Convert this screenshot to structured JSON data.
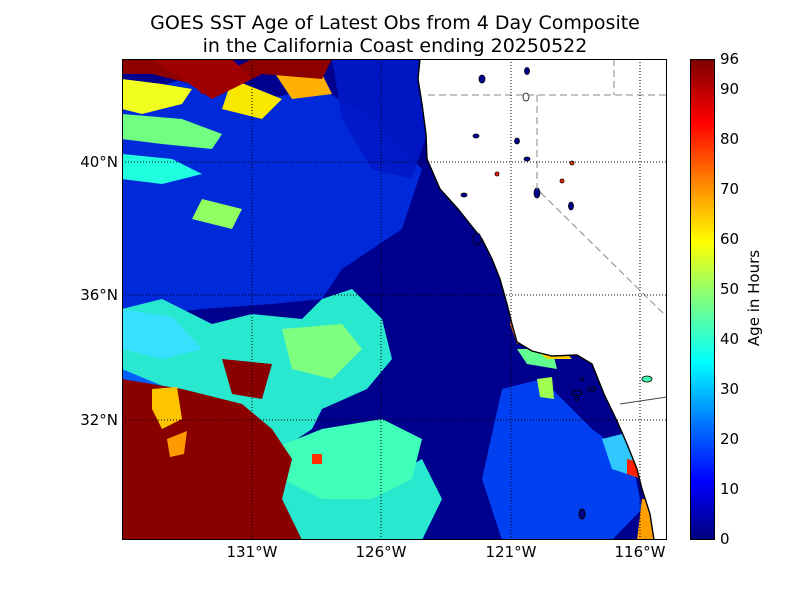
{
  "title_line1": "GOES SST Age of Latest Obs from 4 Day Composite",
  "title_line2": "in the California Coast ending 20250522",
  "map": {
    "x_ticks": [
      "131°W",
      "126°W",
      "121°W",
      "116°W"
    ],
    "y_ticks": [
      "40°N",
      "36°N",
      "32°N"
    ],
    "x_range_deg": [
      -135.5,
      -115.2
    ],
    "y_range_deg": [
      28.6,
      43.1
    ]
  },
  "colorbar": {
    "label": "Age in Hours",
    "ticks": [
      "96",
      "90",
      "80",
      "70",
      "60",
      "50",
      "40",
      "30",
      "20",
      "10",
      "0"
    ],
    "range": [
      0,
      96
    ],
    "colormap": "jet"
  },
  "colors": {
    "land": "#ffffff",
    "recent_ocean": "#00008f",
    "coast": "#000000",
    "grid": "#000000",
    "boundary": "#888888"
  }
}
